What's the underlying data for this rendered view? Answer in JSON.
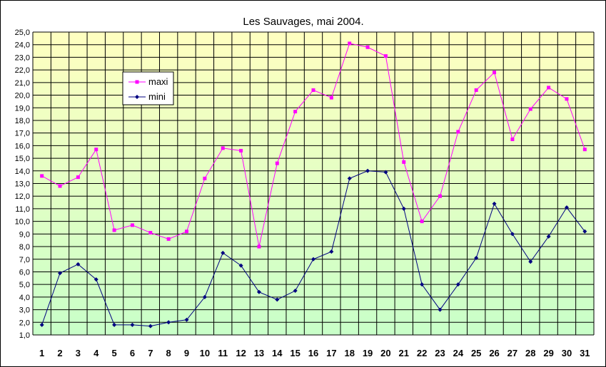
{
  "chart_data": {
    "type": "line",
    "title": "Les Sauvages, mai 2004.",
    "xlabel": "",
    "ylabel": "",
    "ylim": [
      1.0,
      25.0
    ],
    "ytick_step": 1.0,
    "grid": true,
    "legend_position": "top-left",
    "background_gradient": [
      "#FFFFC0",
      "#C8FFC8"
    ],
    "categories": [
      "1",
      "2",
      "3",
      "4",
      "5",
      "6",
      "7",
      "8",
      "9",
      "10",
      "11",
      "12",
      "13",
      "14",
      "15",
      "16",
      "17",
      "18",
      "19",
      "20",
      "21",
      "22",
      "23",
      "24",
      "25",
      "26",
      "27",
      "28",
      "29",
      "30",
      "31"
    ],
    "y_ticks": [
      "1,0",
      "2,0",
      "3,0",
      "4,0",
      "5,0",
      "6,0",
      "7,0",
      "8,0",
      "9,0",
      "10,0",
      "11,0",
      "12,0",
      "13,0",
      "14,0",
      "15,0",
      "16,0",
      "17,0",
      "18,0",
      "19,0",
      "20,0",
      "21,0",
      "22,0",
      "23,0",
      "24,0",
      "25,0"
    ],
    "series": [
      {
        "name": "maxi",
        "color": "#FF00FF",
        "marker": "square",
        "values": [
          13.6,
          12.8,
          13.5,
          15.7,
          9.3,
          9.7,
          9.1,
          8.6,
          9.2,
          13.4,
          15.8,
          15.6,
          8.0,
          14.6,
          18.7,
          20.4,
          19.8,
          24.1,
          23.8,
          23.1,
          14.7,
          10.0,
          12.0,
          17.1,
          20.4,
          21.8,
          16.5,
          18.9,
          20.6,
          19.7,
          15.7
        ]
      },
      {
        "name": "mini",
        "color": "#000080",
        "marker": "diamond",
        "values": [
          1.8,
          5.9,
          6.6,
          5.4,
          1.8,
          1.8,
          1.7,
          2.0,
          2.2,
          4.0,
          7.5,
          6.5,
          4.4,
          3.8,
          4.5,
          7.0,
          7.6,
          13.4,
          14.0,
          13.9,
          11.0,
          5.0,
          3.0,
          5.0,
          7.1,
          11.4,
          9.0,
          6.8,
          8.8,
          11.1,
          9.2
        ]
      }
    ]
  }
}
